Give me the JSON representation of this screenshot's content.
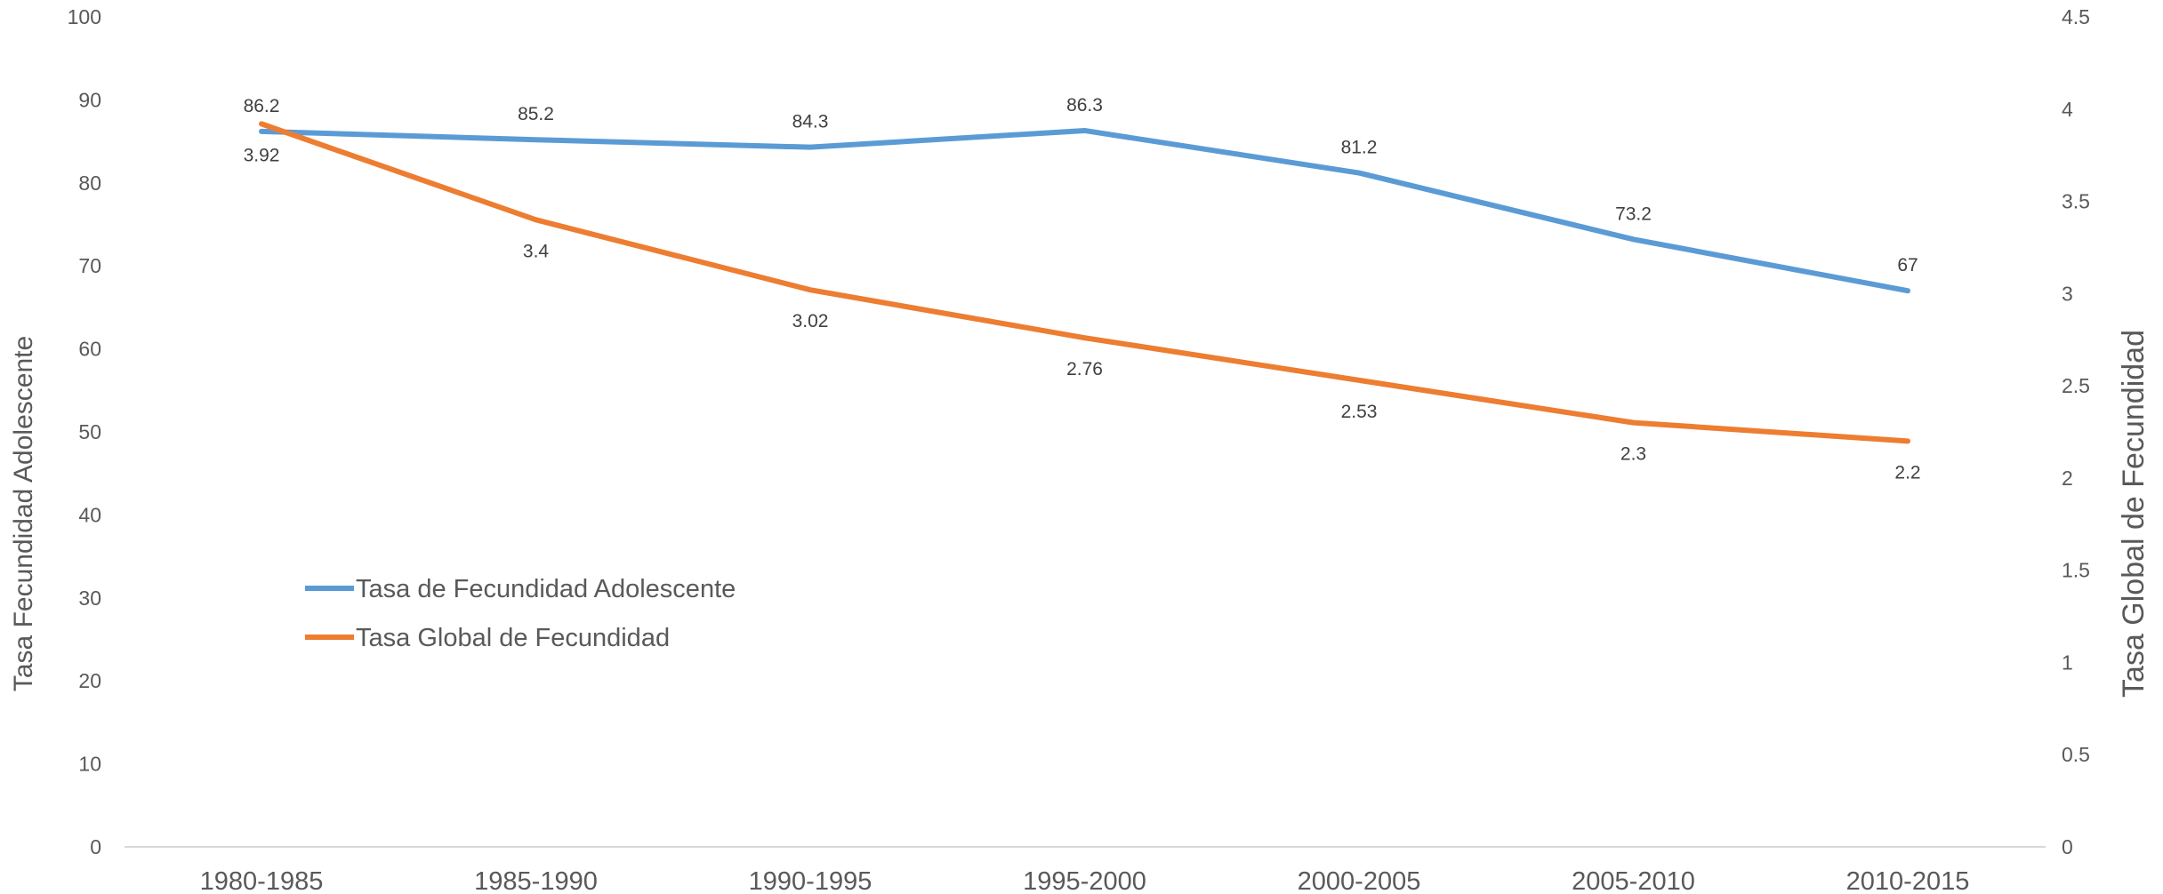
{
  "chart_data": {
    "type": "line",
    "categories": [
      "1980-1985",
      "1985-1990",
      "1990-1995",
      "1995-2000",
      "2000-2005",
      "2005-2010",
      "2010-2015"
    ],
    "series": [
      {
        "name": "Tasa de Fecundidad Adolescente",
        "axis": "left",
        "color": "#5B9BD5",
        "values": [
          86.2,
          85.2,
          84.3,
          86.3,
          81.2,
          73.2,
          67
        ],
        "labels": [
          "86.2",
          "85.2",
          "84.3",
          "86.3",
          "81.2",
          "73.2",
          "67"
        ],
        "label_position": "above"
      },
      {
        "name": "Tasa Global de Fecundidad",
        "axis": "right",
        "color": "#ED7D31",
        "values": [
          3.92,
          3.4,
          3.02,
          2.76,
          2.53,
          2.3,
          2.2
        ],
        "labels": [
          "3.92",
          "3.4",
          "3.02",
          "2.76",
          "2.53",
          "2.3",
          "2.2"
        ],
        "label_position": "below"
      }
    ],
    "y_left": {
      "label": "Tasa Fecundidad Adolescente",
      "ylim": [
        0,
        100
      ],
      "ticks": [
        "0",
        "10",
        "20",
        "30",
        "40",
        "50",
        "60",
        "70",
        "80",
        "90",
        "100"
      ]
    },
    "y_right": {
      "label": "Tasa Global de Fecundidad",
      "ylim": [
        0,
        4.5
      ],
      "ticks": [
        "0",
        "0.5",
        "1",
        "1.5",
        "2",
        "2.5",
        "3",
        "3.5",
        "4",
        "4.5"
      ]
    },
    "grid": false,
    "legend_position": "inside-lower-left"
  }
}
